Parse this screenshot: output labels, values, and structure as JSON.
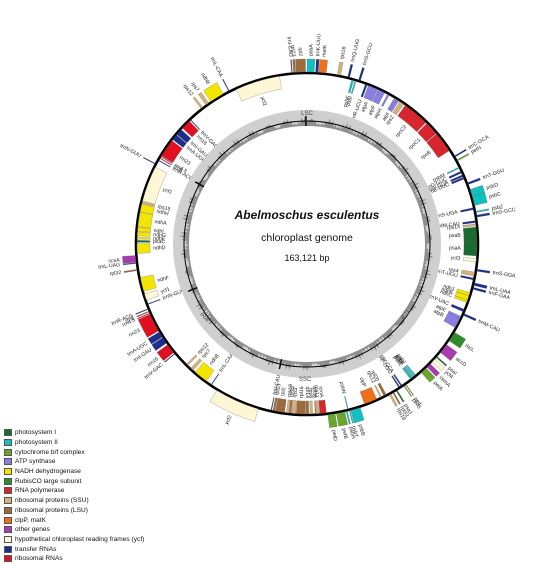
{
  "center": {
    "organism": "Abelmoschus esculentus",
    "description": "chloroplast genome",
    "size": "163,121 bp"
  },
  "regions": [
    "LSC",
    "IRB",
    "SSC",
    "IRA"
  ],
  "legend": [
    {
      "label": "photosystem I",
      "color": "#1a6b32"
    },
    {
      "label": "photosystem II",
      "color": "#14bfbf"
    },
    {
      "label": "cytochrome b/f complex",
      "color": "#6aa62e"
    },
    {
      "label": "ATP synthase",
      "color": "#8a7ee0"
    },
    {
      "label": "NADH dehydrogenase",
      "color": "#f2e600"
    },
    {
      "label": "RubisCO large subunit",
      "color": "#2e8b2e"
    },
    {
      "label": "RNA polymerase",
      "color": "#d7262e"
    },
    {
      "label": "ribosomal proteins (SSU)",
      "color": "#d4b27a"
    },
    {
      "label": "ribosomal proteins (LSU)",
      "color": "#9c6a3c"
    },
    {
      "label": "clpP, matK",
      "color": "#f07018"
    },
    {
      "label": "other genes",
      "color": "#a83cb0"
    },
    {
      "label": "hypothetical chloroplast reading frames (ycf)",
      "color": "#fdf7d6"
    },
    {
      "label": "transfer RNAs",
      "color": "#1c2f8c"
    },
    {
      "label": "ribosomal RNAs",
      "color": "#e01020"
    }
  ],
  "genes": [
    {
      "name": "psbA",
      "start": 0,
      "end": 1.1,
      "strand": "out",
      "category": "photosystem II"
    },
    {
      "name": "trnK-UUU",
      "start": 1.3,
      "end": 1.7,
      "strand": "out",
      "category": "transfer RNAs"
    },
    {
      "name": "matK",
      "start": 1.8,
      "end": 2.9,
      "strand": "out",
      "category": "clpP, matK"
    },
    {
      "name": "rps16",
      "start": 4.6,
      "end": 5.1,
      "strand": "out",
      "category": "ribosomal proteins (SSU)"
    },
    {
      "name": "trnQ-UUG",
      "start": 6.2,
      "end": 6.5,
      "strand": "out",
      "category": "transfer RNAs"
    },
    {
      "name": "psbK",
      "start": 6.9,
      "end": 7.2,
      "strand": "in",
      "category": "photosystem II"
    },
    {
      "name": "psbI",
      "start": 7.4,
      "end": 7.6,
      "strand": "in",
      "category": "photosystem II"
    },
    {
      "name": "trnS-GCU",
      "start": 7.9,
      "end": 8.2,
      "strand": "out",
      "category": "transfer RNAs"
    },
    {
      "name": "trnR-UCU",
      "start": 9.1,
      "end": 9.4,
      "strand": "in",
      "category": "transfer RNAs"
    },
    {
      "name": "atpA",
      "start": 9.6,
      "end": 11.1,
      "strand": "in",
      "category": "ATP synthase"
    },
    {
      "name": "atpF",
      "start": 11.2,
      "end": 12.3,
      "strand": "in",
      "category": "ATP synthase"
    },
    {
      "name": "atpH",
      "start": 12.8,
      "end": 13.1,
      "strand": "in",
      "category": "ATP synthase"
    },
    {
      "name": "atpI",
      "start": 14.0,
      "end": 14.8,
      "strand": "in",
      "category": "ATP synthase"
    },
    {
      "name": "rps2",
      "start": 15.0,
      "end": 15.7,
      "strand": "in",
      "category": "ribosomal proteins (SSU)"
    },
    {
      "name": "rpoC2",
      "start": 16.0,
      "end": 20.1,
      "strand": "in",
      "category": "RNA polymerase"
    },
    {
      "name": "rpoC1",
      "start": 20.3,
      "end": 22.4,
      "strand": "in",
      "category": "RNA polymerase"
    },
    {
      "name": "rpoB",
      "start": 22.5,
      "end": 25.7,
      "strand": "in",
      "category": "RNA polymerase"
    },
    {
      "name": "trnC-GCA",
      "start": 26.8,
      "end": 27.0,
      "strand": "out",
      "category": "transfer RNAs"
    },
    {
      "name": "petN",
      "start": 27.5,
      "end": 27.7,
      "strand": "out",
      "category": "cytochrome b/f complex"
    },
    {
      "name": "psbM",
      "start": 28.6,
      "end": 28.8,
      "strand": "in",
      "category": "photosystem II"
    },
    {
      "name": "trnD-GUC",
      "start": 29.3,
      "end": 29.6,
      "strand": "in",
      "category": "transfer RNAs"
    },
    {
      "name": "trnY-GUA",
      "start": 29.9,
      "end": 30.2,
      "strand": "in",
      "category": "transfer RNAs"
    },
    {
      "name": "trnE-UUC",
      "start": 30.3,
      "end": 30.6,
      "strand": "in",
      "category": "transfer RNAs"
    },
    {
      "name": "trnT-GGU",
      "start": 31.3,
      "end": 31.6,
      "strand": "out",
      "category": "transfer RNAs"
    },
    {
      "name": "psbD",
      "start": 32.4,
      "end": 33.5,
      "strand": "out",
      "category": "photosystem II"
    },
    {
      "name": "psbC",
      "start": 33.5,
      "end": 34.9,
      "strand": "out",
      "category": "photosystem II"
    },
    {
      "name": "trnS-UGA",
      "start": 35.2,
      "end": 35.5,
      "strand": "in",
      "category": "transfer RNAs"
    },
    {
      "name": "psbZ",
      "start": 35.8,
      "end": 36.0,
      "strand": "out",
      "category": "photosystem II"
    },
    {
      "name": "trnG-GCC",
      "start": 36.4,
      "end": 36.7,
      "strand": "out",
      "category": "transfer RNAs"
    },
    {
      "name": "trnfM-CAU",
      "start": 37.2,
      "end": 37.5,
      "strand": "in",
      "category": "transfer RNAs"
    },
    {
      "name": "rps14",
      "start": 37.7,
      "end": 38.0,
      "strand": "in",
      "category": "ribosomal proteins (SSU)"
    },
    {
      "name": "psaB",
      "start": 38.2,
      "end": 40.4,
      "strand": "in",
      "category": "photosystem I"
    },
    {
      "name": "psaA",
      "start": 40.4,
      "end": 42.6,
      "strand": "in",
      "category": "photosystem I"
    },
    {
      "name": "ycf3",
      "start": 43.0,
      "end": 43.5,
      "strand": "in",
      "category": "hypothetical chloroplast reading frames (ycf)"
    },
    {
      "name": "trnS-GGA",
      "start": 44.6,
      "end": 44.9,
      "strand": "out",
      "category": "transfer RNAs"
    },
    {
      "name": "rps4",
      "start": 45.1,
      "end": 45.7,
      "strand": "in",
      "category": "ribosomal proteins (SSU)"
    },
    {
      "name": "trnT-UGU",
      "start": 46.0,
      "end": 46.3,
      "strand": "in",
      "category": "transfer RNAs"
    },
    {
      "name": "trnL-UAA",
      "start": 46.7,
      "end": 47.1,
      "strand": "out",
      "category": "transfer RNAs"
    },
    {
      "name": "trnF-GAA",
      "start": 47.4,
      "end": 47.7,
      "strand": "out",
      "category": "transfer RNAs"
    },
    {
      "name": "ndhJ",
      "start": 48.3,
      "end": 48.8,
      "strand": "in",
      "category": "NADH dehydrogenase"
    },
    {
      "name": "ndhK",
      "start": 48.8,
      "end": 49.5,
      "strand": "in",
      "category": "NADH dehydrogenase"
    },
    {
      "name": "ndhC",
      "start": 49.5,
      "end": 49.9,
      "strand": "in",
      "category": "NADH dehydrogenase"
    },
    {
      "name": "trnV-UAC",
      "start": 51.0,
      "end": 51.4,
      "strand": "in",
      "category": "transfer RNAs"
    },
    {
      "name": "trnM-CAU",
      "start": 51.6,
      "end": 51.9,
      "strand": "out",
      "category": "transfer RNAs"
    },
    {
      "name": "atpE",
      "start": 52.2,
      "end": 52.6,
      "strand": "in",
      "category": "ATP synthase"
    },
    {
      "name": "atpB",
      "start": 52.6,
      "end": 54.1,
      "strand": "in",
      "category": "ATP synthase"
    },
    {
      "name": "rbcL",
      "start": 54.8,
      "end": 56.3,
      "strand": "out",
      "category": "RubisCO large subunit"
    },
    {
      "name": "accD",
      "start": 57.0,
      "end": 58.5,
      "strand": "out",
      "category": "other genes"
    },
    {
      "name": "psaI",
      "start": 59.3,
      "end": 59.5,
      "strand": "out",
      "category": "photosystem I"
    },
    {
      "name": "ycf4",
      "start": 59.8,
      "end": 60.4,
      "strand": "out",
      "category": "hypothetical chloroplast reading frames (ycf)"
    },
    {
      "name": "cemA",
      "start": 60.8,
      "end": 61.5,
      "strand": "out",
      "category": "other genes"
    },
    {
      "name": "petA",
      "start": 61.7,
      "end": 62.7,
      "strand": "out",
      "category": "cytochrome b/f complex"
    },
    {
      "name": "psbJ",
      "start": 63.6,
      "end": 63.8,
      "strand": "in",
      "category": "photosystem II"
    },
    {
      "name": "psbL",
      "start": 63.9,
      "end": 64.0,
      "strand": "in",
      "category": "photosystem II"
    },
    {
      "name": "psbF",
      "start": 64.1,
      "end": 64.2,
      "strand": "in",
      "category": "photosystem II"
    },
    {
      "name": "psbE",
      "start": 64.3,
      "end": 64.6,
      "strand": "in",
      "category": "photosystem II"
    },
    {
      "name": "petL",
      "start": 65.6,
      "end": 65.7,
      "strand": "out",
      "category": "cytochrome b/f complex"
    },
    {
      "name": "petG",
      "start": 65.9,
      "end": 66.0,
      "strand": "out",
      "category": "cytochrome b/f complex"
    },
    {
      "name": "trnW-CCA",
      "start": 66.2,
      "end": 66.4,
      "strand": "in",
      "category": "transfer RNAs"
    },
    {
      "name": "trnP-UGG",
      "start": 66.6,
      "end": 66.8,
      "strand": "in",
      "category": "transfer RNAs"
    },
    {
      "name": "psaJ",
      "start": 67.2,
      "end": 67.4,
      "strand": "out",
      "category": "photosystem I"
    },
    {
      "name": "rpl33",
      "start": 67.8,
      "end": 68.0,
      "strand": "out",
      "category": "ribosomal proteins (LSU)"
    },
    {
      "name": "rps18",
      "start": 68.3,
      "end": 68.6,
      "strand": "out",
      "category": "ribosomal proteins (SSU)"
    },
    {
      "name": "rpl20",
      "start": 69.0,
      "end": 69.4,
      "strand": "in",
      "category": "ribosomal proteins (LSU)"
    },
    {
      "name": "rps12",
      "start": 69.8,
      "end": 70.0,
      "strand": "in",
      "category": "ribosomal proteins (SSU)"
    },
    {
      "name": "clpP",
      "start": 70.6,
      "end": 72.6,
      "strand": "in",
      "category": "clpP, matK"
    },
    {
      "name": "psbB",
      "start": 73.4,
      "end": 74.9,
      "strand": "out",
      "category": "photosystem II"
    },
    {
      "name": "psbT",
      "start": 75.0,
      "end": 75.1,
      "strand": "out",
      "category": "photosystem II"
    },
    {
      "name": "psbN",
      "start": 75.2,
      "end": 75.3,
      "strand": "in",
      "category": "photosystem II"
    },
    {
      "name": "psbH",
      "start": 75.4,
      "end": 75.6,
      "strand": "out",
      "category": "photosystem II"
    },
    {
      "name": "petB",
      "start": 75.8,
      "end": 77.1,
      "strand": "out",
      "category": "cytochrome b/f complex"
    },
    {
      "name": "petD",
      "start": 77.3,
      "end": 78.4,
      "strand": "out",
      "category": "cytochrome b/f complex"
    },
    {
      "name": "rpoA",
      "start": 78.6,
      "end": 79.6,
      "strand": "in",
      "category": "RNA polymerase"
    },
    {
      "name": "rps11",
      "start": 79.7,
      "end": 80.1,
      "strand": "in",
      "category": "ribosomal proteins (SSU)"
    },
    {
      "name": "rpl36",
      "start": 80.2,
      "end": 80.3,
      "strand": "in",
      "category": "ribosomal proteins (LSU)"
    },
    {
      "name": "rps8",
      "start": 80.7,
      "end": 81.1,
      "strand": "in",
      "category": "ribosomal proteins (SSU)"
    },
    {
      "name": "rpl14",
      "start": 81.3,
      "end": 81.7,
      "strand": "in",
      "category": "ribosomal proteins (LSU)"
    },
    {
      "name": "rpl16",
      "start": 81.8,
      "end": 83.2,
      "strand": "in",
      "category": "ribosomal proteins (LSU)"
    },
    {
      "name": "rps3",
      "start": 83.3,
      "end": 83.9,
      "strand": "in",
      "category": "ribosomal proteins (SSU)"
    },
    {
      "name": "rpl22",
      "start": 84.0,
      "end": 84.3,
      "strand": "in",
      "category": "ribosomal proteins (LSU)"
    },
    {
      "name": "rps19",
      "start": 84.4,
      "end": 84.7,
      "strand": "in",
      "category": "ribosomal proteins (SSU)"
    },
    {
      "name": "rpl2",
      "start": 85.0,
      "end": 86.4,
      "strand": "in",
      "category": "ribosomal proteins (LSU)"
    },
    {
      "name": "rpl23",
      "start": 86.5,
      "end": 86.8,
      "strand": "in",
      "category": "ribosomal proteins (LSU)"
    },
    {
      "name": "trnI-CAU",
      "start": 87.0,
      "end": 87.1,
      "strand": "in",
      "category": "transfer RNAs"
    },
    {
      "name": "ycf2",
      "start": 89.0,
      "end": 95.9,
      "strand": "out",
      "category": "hypothetical chloroplast reading frames (ycf)"
    },
    {
      "name": "trnL-CAA",
      "start": 97.0,
      "end": 97.1,
      "strand": "in",
      "category": "transfer RNAs"
    },
    {
      "name": "ndhB",
      "start": 98.0,
      "end": 100.2,
      "strand": "in",
      "category": "NADH dehydrogenase"
    },
    {
      "name": "rps7",
      "start": 100.6,
      "end": 101.1,
      "strand": "in",
      "category": "ribosomal proteins (SSU)"
    },
    {
      "name": "rps12",
      "start": 101.7,
      "end": 102.0,
      "strand": "in",
      "category": "ribosomal proteins (SSU)"
    },
    {
      "name": "trnV-GAC",
      "start": 104.3,
      "end": 104.4,
      "strand": "out",
      "category": "transfer RNAs"
    },
    {
      "name": "rrn16",
      "start": 104.6,
      "end": 106.1,
      "strand": "out",
      "category": "ribosomal RNAs"
    },
    {
      "name": "trnI-GAU",
      "start": 106.4,
      "end": 107.4,
      "strand": "out",
      "category": "transfer RNAs"
    },
    {
      "name": "trnA-UGC",
      "start": 107.5,
      "end": 108.4,
      "strand": "out",
      "category": "transfer RNAs"
    },
    {
      "name": "rrn23",
      "start": 108.6,
      "end": 111.4,
      "strand": "out",
      "category": "ribosomal RNAs"
    },
    {
      "name": "rrn4.5",
      "start": 111.5,
      "end": 111.6,
      "strand": "out",
      "category": "ribosomal RNAs"
    },
    {
      "name": "rrn5",
      "start": 111.8,
      "end": 111.9,
      "strand": "out",
      "category": "ribosomal RNAs"
    },
    {
      "name": "trnR-ACG",
      "start": 112.2,
      "end": 112.3,
      "strand": "out",
      "category": "transfer RNAs"
    },
    {
      "name": "trnN-GUU",
      "start": 112.9,
      "end": 113.0,
      "strand": "in",
      "category": "transfer RNAs"
    },
    {
      "name": "ycf1",
      "start": 113.6,
      "end": 114.6,
      "strand": "in",
      "category": "hypothetical chloroplast reading frames (ycf)"
    },
    {
      "name": "ndhF",
      "start": 115.0,
      "end": 117.2,
      "strand": "in",
      "category": "NADH dehydrogenase"
    },
    {
      "name": "rpl32",
      "start": 118.3,
      "end": 118.5,
      "strand": "out",
      "category": "ribosomal proteins (LSU)"
    },
    {
      "name": "trnL-UAG",
      "start": 119.4,
      "end": 119.5,
      "strand": "out",
      "category": "transfer RNAs"
    },
    {
      "name": "ccsA",
      "start": 119.6,
      "end": 120.6,
      "strand": "out",
      "category": "other genes"
    },
    {
      "name": "ndhD",
      "start": 120.9,
      "end": 122.4,
      "strand": "in",
      "category": "NADH dehydrogenase"
    },
    {
      "name": "psaC",
      "start": 122.6,
      "end": 122.9,
      "strand": "in",
      "category": "photosystem I"
    },
    {
      "name": "ndhE",
      "start": 123.1,
      "end": 123.4,
      "strand": "in",
      "category": "NADH dehydrogenase"
    },
    {
      "name": "ndhG",
      "start": 123.6,
      "end": 124.2,
      "strand": "in",
      "category": "NADH dehydrogenase"
    },
    {
      "name": "ndhI",
      "start": 124.3,
      "end": 124.9,
      "strand": "in",
      "category": "NADH dehydrogenase"
    },
    {
      "name": "ndhA",
      "start": 125.0,
      "end": 127.2,
      "strand": "in",
      "category": "NADH dehydrogenase"
    },
    {
      "name": "ndhH",
      "start": 127.3,
      "end": 128.5,
      "strand": "in",
      "category": "NADH dehydrogenase"
    },
    {
      "name": "rps15",
      "start": 128.6,
      "end": 128.9,
      "strand": "in",
      "category": "ribosomal proteins (SSU)"
    },
    {
      "name": "ycf1",
      "start": 129.0,
      "end": 134.5,
      "strand": "in",
      "category": "hypothetical chloroplast reading frames (ycf)"
    },
    {
      "name": "trnN-GUU",
      "start": 134.9,
      "end": 135.0,
      "strand": "out",
      "category": "transfer RNAs"
    },
    {
      "name": "trnR-ACG",
      "start": 135.6,
      "end": 135.7,
      "strand": "in",
      "category": "transfer RNAs"
    },
    {
      "name": "rrn5",
      "start": 136.0,
      "end": 136.1,
      "strand": "in",
      "category": "ribosomal RNAs"
    },
    {
      "name": "rrn4.5",
      "start": 136.3,
      "end": 136.4,
      "strand": "in",
      "category": "ribosomal RNAs"
    },
    {
      "name": "rrn23",
      "start": 136.5,
      "end": 139.3,
      "strand": "in",
      "category": "ribosomal RNAs"
    },
    {
      "name": "trnA-UGC",
      "start": 139.5,
      "end": 140.4,
      "strand": "in",
      "category": "transfer RNAs"
    },
    {
      "name": "trnI-GAU",
      "start": 140.5,
      "end": 141.5,
      "strand": "in",
      "category": "transfer RNAs"
    },
    {
      "name": "rrn16",
      "start": 141.8,
      "end": 143.3,
      "strand": "in",
      "category": "ribosomal RNAs"
    },
    {
      "name": "trnV-GAC",
      "start": 143.5,
      "end": 143.6,
      "strand": "in",
      "category": "transfer RNAs"
    },
    {
      "name": "rps12",
      "start": 145.9,
      "end": 146.2,
      "strand": "out",
      "category": "ribosomal proteins (SSU)"
    },
    {
      "name": "rps7",
      "start": 146.8,
      "end": 147.3,
      "strand": "out",
      "category": "ribosomal proteins (SSU)"
    },
    {
      "name": "ndhB",
      "start": 147.7,
      "end": 149.9,
      "strand": "out",
      "category": "NADH dehydrogenase"
    },
    {
      "name": "trnL-CAA",
      "start": 150.8,
      "end": 150.9,
      "strand": "out",
      "category": "transfer RNAs"
    },
    {
      "name": "ycf2",
      "start": 152.0,
      "end": 158.9,
      "strand": "in",
      "category": "hypothetical chloroplast reading frames (ycf)"
    },
    {
      "name": "trnI-CAU",
      "start": 160.8,
      "end": 160.9,
      "strand": "out",
      "category": "transfer RNAs"
    },
    {
      "name": "rpl23",
      "start": 161.1,
      "end": 161.4,
      "strand": "out",
      "category": "ribosomal proteins (LSU)"
    },
    {
      "name": "rpl2",
      "start": 161.5,
      "end": 162.9,
      "strand": "out",
      "category": "ribosomal proteins (LSU)"
    }
  ]
}
